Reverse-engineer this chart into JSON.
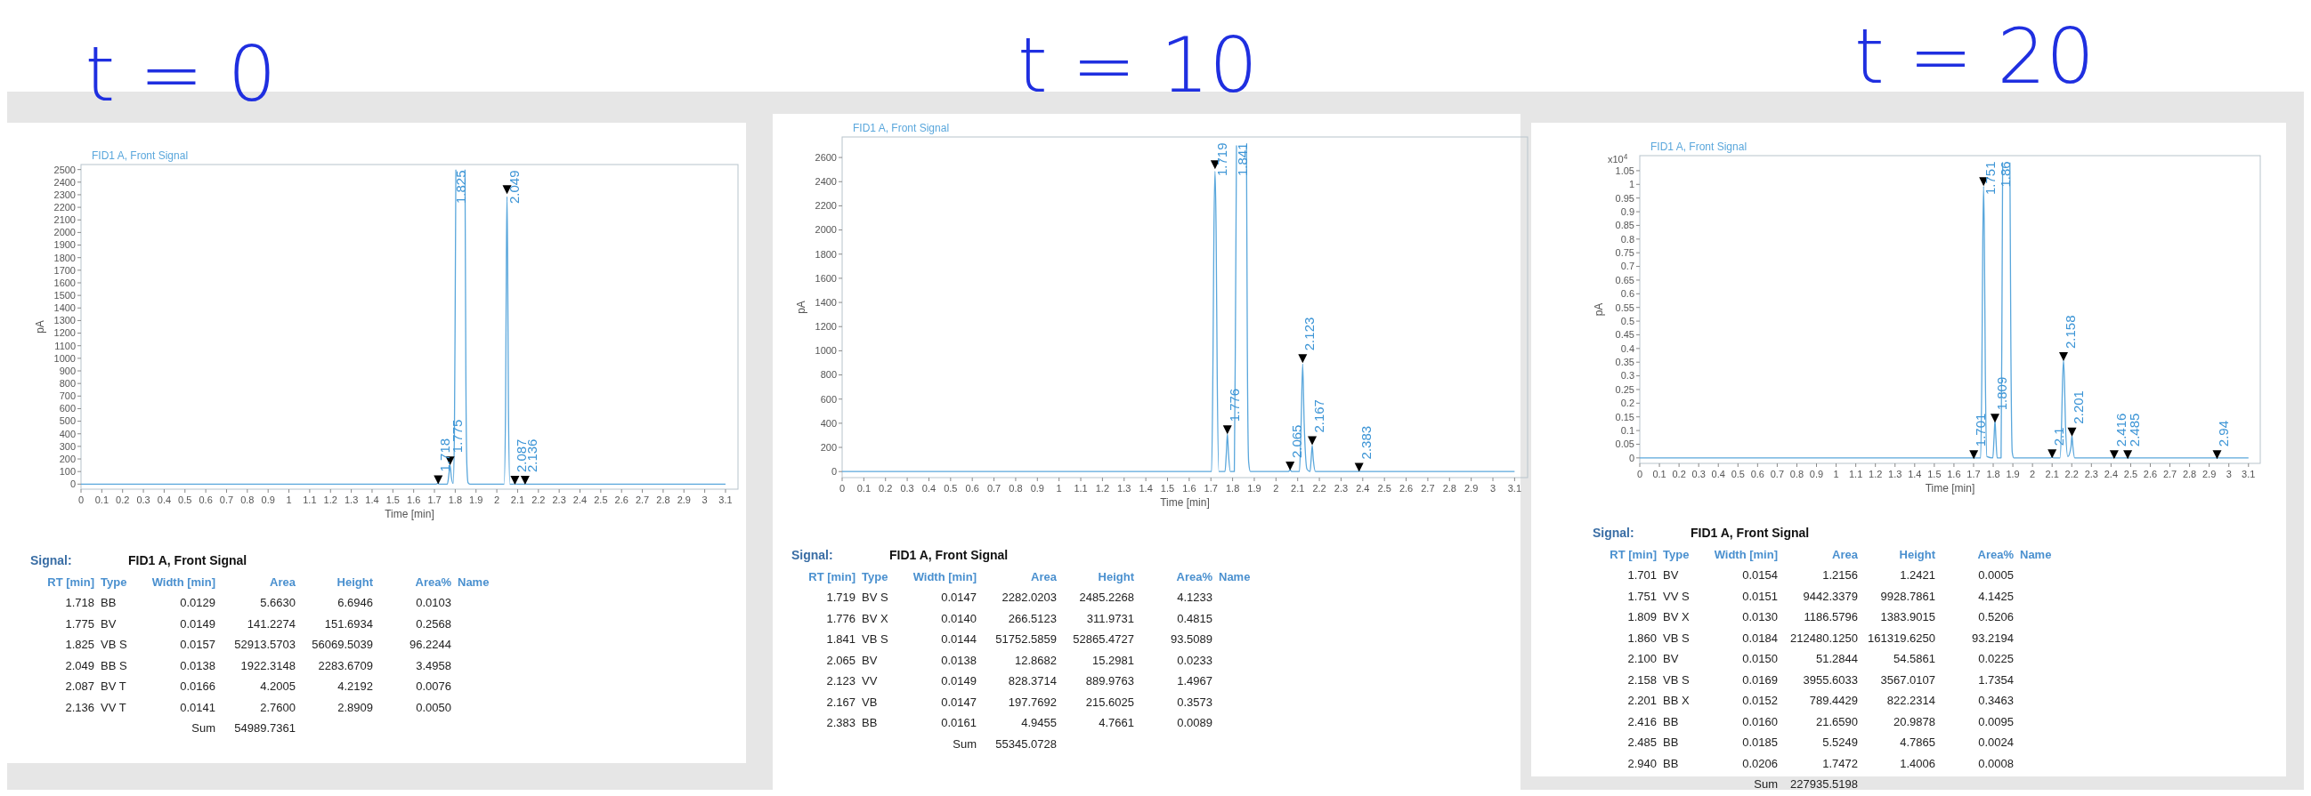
{
  "chart_data": [
    {
      "type": "line",
      "title": "t = 0",
      "subtitle": "FID1 A, Front Signal",
      "xlabel": "Time [min]",
      "ylabel": "pA",
      "xlim": [
        0,
        3.16
      ],
      "ylim": [
        -40,
        2540
      ],
      "xticks": [
        0,
        0.1,
        0.2,
        0.3,
        0.4,
        0.5,
        0.6,
        0.7,
        0.8,
        0.9,
        1,
        1.1,
        1.2,
        1.3,
        1.4,
        1.5,
        1.6,
        1.7,
        1.8,
        1.9,
        2,
        2.1,
        2.2,
        2.3,
        2.4,
        2.5,
        2.6,
        2.7,
        2.8,
        2.9,
        3,
        3.1
      ],
      "yticks": [
        0,
        100,
        200,
        300,
        400,
        500,
        600,
        700,
        800,
        900,
        1000,
        1100,
        1200,
        1300,
        1400,
        1500,
        1600,
        1700,
        1800,
        1900,
        2000,
        2100,
        2200,
        2300,
        2400,
        2500
      ],
      "grid": false,
      "series": [
        {
          "type": "line",
          "color": "#5aa7dc",
          "x": [
            0,
            1.705,
            1.712,
            1.718,
            1.724,
            1.762,
            1.769,
            1.775,
            1.781,
            1.79,
            1.796,
            1.8,
            1.803,
            1.825,
            1.847,
            1.851,
            1.856,
            1.862,
            1.87,
            2.035,
            2.042,
            2.046,
            2.049,
            2.052,
            2.056,
            2.063,
            2.081,
            2.087,
            2.093,
            2.13,
            2.136,
            2.142,
            3.1
          ],
          "values": [
            0,
            0,
            3,
            7,
            0,
            0,
            70,
            152,
            60,
            5,
            400,
            1500,
            2500,
            null,
            2500,
            900,
            150,
            10,
            0,
            0,
            600,
            1800,
            2284,
            1800,
            600,
            0,
            0,
            4,
            0,
            0,
            3,
            0,
            0
          ]
        },
        {
          "type": "scatter",
          "marker": "triangle",
          "color": "#000000",
          "x": [
            1.718,
            1.775,
            2.049,
            2.087,
            2.136
          ],
          "values": [
            35,
            185,
            2340,
            30,
            30
          ]
        }
      ],
      "annotations": [
        {
          "text": "1.718",
          "x": 1.718,
          "y": 35
        },
        {
          "text": "1.775",
          "x": 1.775,
          "y": 185
        },
        "1.825",
        {
          "text": "2.049",
          "x": 2.049,
          "y": 2340
        },
        {
          "text": "2.087",
          "x": 2.087,
          "y": 30
        },
        {
          "text": "2.136",
          "x": 2.136,
          "y": 30
        },
        "Signal:\tFID1 A, Front Signal",
        "RT [min]\tType\tWidth [min]\tArea\tHeight\tArea%\tName",
        "1.718\tBB\t0.0129\t5.6630\t6.6946\t0.0103",
        "1.775\tBV\t0.0149\t141.2274\t151.6934\t0.2568",
        "1.825\tVB S\t0.0157\t52913.5703\t56069.5039\t96.2244",
        "2.049\tBB S\t0.0138\t1922.3148\t2283.6709\t3.4958",
        "2.087\tBV T\t0.0166\t4.2005\t4.2192\t0.0076",
        "2.136\tVV T\t0.0141\t2.7600\t2.8909\t0.0050",
        "\t\tSum\t54989.7361"
      ]
    },
    {
      "type": "line",
      "title": "t = 10",
      "subtitle": "FID1 A, Front Signal",
      "xlabel": "Time [min]",
      "ylabel": "pA",
      "xlim": [
        0,
        3.16
      ],
      "ylim": [
        -50,
        2770
      ],
      "xticks": [
        0,
        0.1,
        0.2,
        0.3,
        0.4,
        0.5,
        0.6,
        0.7,
        0.8,
        0.9,
        1,
        1.1,
        1.2,
        1.3,
        1.4,
        1.5,
        1.6,
        1.7,
        1.8,
        1.9,
        2,
        2.1,
        2.2,
        2.3,
        2.4,
        2.5,
        2.6,
        2.7,
        2.8,
        2.9,
        3,
        3.1
      ],
      "yticks": [
        0,
        200,
        400,
        600,
        800,
        1000,
        1200,
        1400,
        1600,
        1800,
        2000,
        2200,
        2400,
        2600
      ],
      "grid": false,
      "series": [
        {
          "type": "line",
          "color": "#5aa7dc",
          "x": [
            0,
            1.703,
            1.709,
            1.714,
            1.719,
            1.724,
            1.729,
            1.737,
            1.765,
            1.771,
            1.776,
            1.781,
            1.79,
            1.808,
            1.814,
            1.818,
            1.841,
            1.864,
            1.868,
            1.874,
            1.882,
            2.058,
            2.065,
            2.072,
            2.108,
            2.116,
            2.123,
            2.13,
            2.143,
            2.157,
            2.162,
            2.167,
            2.172,
            2.182,
            2.376,
            2.383,
            2.39,
            3.1
          ],
          "values": [
            0,
            0,
            800,
            2000,
            2485,
            2000,
            800,
            0,
            0,
            150,
            312,
            150,
            0,
            0,
            1500,
            2700,
            null,
            2700,
            1000,
            80,
            0,
            0,
            15,
            0,
            0,
            400,
            890,
            400,
            20,
            0,
            100,
            216,
            100,
            0,
            0,
            5,
            0,
            0
          ]
        },
        {
          "type": "scatter",
          "marker": "triangle",
          "color": "#000000",
          "x": [
            1.719,
            1.776,
            2.065,
            2.123,
            2.167,
            2.383
          ],
          "values": [
            2540,
            345,
            45,
            935,
            255,
            35
          ]
        }
      ],
      "annotations": [
        {
          "text": "1.719",
          "x": 1.719,
          "y": 2540
        },
        {
          "text": "1.776",
          "x": 1.776,
          "y": 345
        },
        "1.841",
        {
          "text": "2.065",
          "x": 2.065,
          "y": 45
        },
        {
          "text": "2.123",
          "x": 2.123,
          "y": 935
        },
        {
          "text": "2.167",
          "x": 2.167,
          "y": 255
        },
        {
          "text": "2.383",
          "x": 2.383,
          "y": 35
        },
        "Signal:\tFID1 A, Front Signal",
        "RT [min]\tType\tWidth [min]\tArea\tHeight\tArea%\tName",
        "1.719\tBV S\t0.0147\t2282.0203\t2485.2268\t4.1233",
        "1.776\tBV X\t0.0140\t266.5123\t311.9731\t0.4815",
        "1.841\tVB S\t0.0144\t51752.5859\t52865.4727\t93.5089",
        "2.065\tBV\t0.0138\t12.8682\t15.2981\t0.0233",
        "2.123\tVV\t0.0149\t828.3714\t889.9763\t1.4967",
        "2.167\tVB\t0.0147\t197.7692\t215.6025\t0.3573",
        "2.383\tBB\t0.0161\t4.9455\t4.7661\t0.0089",
        "\t\tSum\t55345.0728"
      ]
    },
    {
      "type": "line",
      "title": "t = 20",
      "subtitle": "FID1 A, Front Signal",
      "xlabel": "Time [min]",
      "ylabel": "pA",
      "xlim": [
        0,
        3.16
      ],
      "ylim": [
        -0.02,
        1.105
      ],
      "xticks": [
        0,
        0.1,
        0.2,
        0.3,
        0.4,
        0.5,
        0.6,
        0.7,
        0.8,
        0.9,
        1,
        1.1,
        1.2,
        1.3,
        1.4,
        1.5,
        1.6,
        1.7,
        1.8,
        1.9,
        2,
        2.1,
        2.2,
        2.3,
        2.4,
        2.5,
        2.6,
        2.7,
        2.8,
        2.9,
        3,
        3.1
      ],
      "yticks": [
        0,
        0.05,
        0.1,
        0.15,
        0.2,
        0.25,
        0.3,
        0.35,
        0.4,
        0.45,
        0.5,
        0.55,
        0.6,
        0.65,
        0.7,
        0.75,
        0.8,
        0.85,
        0.9,
        0.95,
        1,
        1.05
      ],
      "grid": false,
      "series": [
        {
          "type": "line",
          "color": "#5aa7dc",
          "x": [
            0,
            1.695,
            1.707,
            1.736,
            1.742,
            1.747,
            1.751,
            1.755,
            1.76,
            1.768,
            1.798,
            1.804,
            1.809,
            1.814,
            1.82,
            1.84,
            1.845,
            1.848,
            1.86,
            1.885,
            1.89,
            1.897,
            1.905,
            2.093,
            2.1,
            2.107,
            2.14,
            2.148,
            2.153,
            2.158,
            2.163,
            2.168,
            2.18,
            2.196,
            2.201,
            2.206,
            2.215,
            2.41,
            2.416,
            2.422,
            3.1
          ],
          "values": [
            0,
            0,
            0,
            0,
            0.3,
            0.8,
            0.993,
            0.8,
            0.3,
            0.005,
            0,
            0.07,
            0.138,
            0.07,
            0,
            0,
            0.6,
            1.08,
            null,
            1.08,
            0.4,
            0.02,
            0,
            0,
            0.005,
            0,
            0,
            0.12,
            0.28,
            0.357,
            0.28,
            0.12,
            0.005,
            0.04,
            0.082,
            0.04,
            0,
            0,
            0.002,
            0,
            0
          ]
        },
        {
          "type": "scatter",
          "marker": "triangle",
          "color": "#000000",
          "x": [
            1.701,
            1.751,
            1.809,
            2.1,
            2.158,
            2.201,
            2.416,
            2.485,
            2.94
          ],
          "values": [
            0.012,
            1.01,
            0.145,
            0.015,
            0.37,
            0.095,
            0.012,
            0.012,
            0.012
          ]
        }
      ],
      "annotations": [
        {
          "text": "x10$^{4}$"
        },
        {
          "text": "1.701",
          "x": 1.701,
          "y": 0.012
        },
        {
          "text": "1.751",
          "x": 1.751,
          "y": 1.01
        },
        {
          "text": "1.809",
          "x": 1.809,
          "y": 0.145
        },
        "1.86",
        {
          "text": "2.1",
          "x": 2.1,
          "y": 0.015
        },
        {
          "text": "2.158",
          "x": 2.158,
          "y": 0.37
        },
        {
          "text": "2.201",
          "x": 2.201,
          "y": 0.095
        },
        {
          "text": "2.416",
          "x": 2.416,
          "y": 0.012
        },
        {
          "text": "2.485",
          "x": 2.485,
          "y": 0.012
        },
        {
          "text": "2.94",
          "x": 2.94,
          "y": 0.012
        },
        "Signal:\tFID1 A, Front Signal",
        "RT [min]\tType\tWidth [min]\tArea\tHeight\tArea%\tName",
        "1.701\tBV\t0.0154\t1.2156\t1.2421\t0.0005",
        "1.751\tVV S\t0.0151\t9442.3379\t9928.7861\t4.1425",
        "1.809\tBV X\t0.0130\t1186.5796\t1383.9015\t0.5206",
        "1.860\tVB S\t0.0184\t212480.1250\t161319.6250\t93.2194",
        "2.100\tBV\t0.0150\t51.2844\t54.5861\t0.0225",
        "2.158\tVB S\t0.0169\t3955.6033\t3567.0107\t1.7354",
        "2.201\tBB X\t0.0152\t789.4429\t822.2314\t0.3463",
        "2.416\tBB\t0.0160\t21.6590\t20.9878\t0.0095",
        "2.485\tBB\t0.0185\t5.5249\t4.7865\t0.0024",
        "2.940\tBB\t0.0206\t1.7472\t1.4006\t0.0008",
        "\t\tSum\t227935.5198"
      ]
    }
  ]
}
